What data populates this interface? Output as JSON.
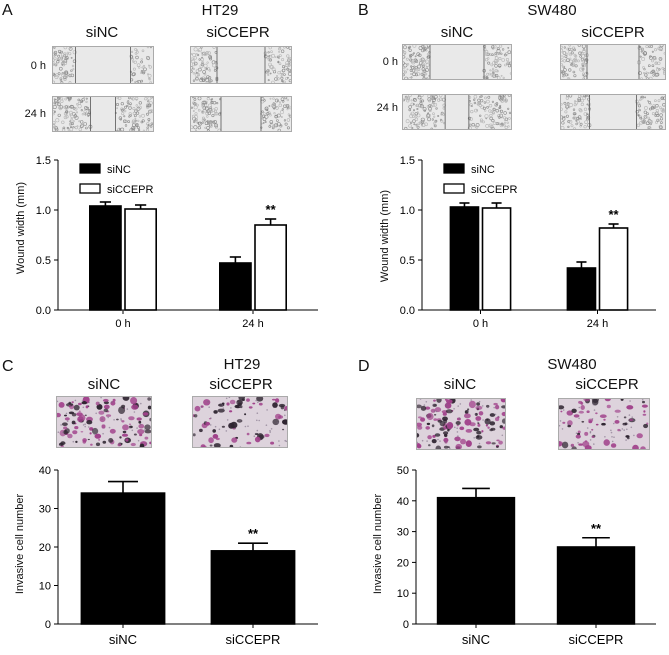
{
  "panels": [
    {
      "id": "A",
      "title": "HT29",
      "groups": [
        "siNC",
        "siCCEPR"
      ],
      "times": [
        "0 h",
        "24 h"
      ]
    },
    {
      "id": "B",
      "title": "SW480",
      "groups": [
        "siNC",
        "siCCEPR"
      ],
      "times": [
        "0 h",
        "24 h"
      ]
    },
    {
      "id": "C",
      "title": "HT29",
      "groups": [
        "siNC",
        "siCCEPR"
      ]
    },
    {
      "id": "D",
      "title": "SW480",
      "groups": [
        "siNC",
        "siCCEPR"
      ]
    }
  ],
  "colors": {
    "filled": "#000000",
    "open": "#ffffff",
    "stain": "#a0408a",
    "field": "#ddd3dc",
    "scratch_bg": "#e9e9e9"
  },
  "chart_data": [
    {
      "panel": "A",
      "type": "bar",
      "categories": [
        "0 h",
        "24 h"
      ],
      "series": [
        {
          "name": "siNC",
          "values": [
            1.04,
            0.47
          ],
          "errors": [
            0.04,
            0.06
          ],
          "fill": "filled"
        },
        {
          "name": "siCCEPR",
          "values": [
            1.01,
            0.85
          ],
          "errors": [
            0.04,
            0.06
          ],
          "fill": "open"
        }
      ],
      "ylabel": "Wound width (mm)",
      "xlabel": "",
      "ylim": [
        0,
        1.5
      ],
      "yticks": [
        "0.0",
        "0.5",
        "1.0",
        "1.5"
      ],
      "annotations": [
        {
          "category": "24 h",
          "series": "siCCEPR",
          "text": "**"
        }
      ],
      "legend": "top-left",
      "grid": false
    },
    {
      "panel": "B",
      "type": "bar",
      "categories": [
        "0 h",
        "24 h"
      ],
      "series": [
        {
          "name": "siNC",
          "values": [
            1.03,
            0.42
          ],
          "errors": [
            0.04,
            0.06
          ],
          "fill": "filled"
        },
        {
          "name": "siCCEPR",
          "values": [
            1.02,
            0.82
          ],
          "errors": [
            0.05,
            0.04
          ],
          "fill": "open"
        }
      ],
      "ylabel": "Wound width (mm)",
      "xlabel": "",
      "ylim": [
        0,
        1.5
      ],
      "yticks": [
        "0.0",
        "0.5",
        "1.0",
        "1.5"
      ],
      "annotations": [
        {
          "category": "24 h",
          "series": "siCCEPR",
          "text": "**"
        }
      ],
      "legend": "top-left",
      "grid": false
    },
    {
      "panel": "C",
      "type": "bar",
      "categories": [
        "siNC",
        "siCCEPR"
      ],
      "series": [
        {
          "name": "",
          "values": [
            34,
            19
          ],
          "errors": [
            3,
            2
          ],
          "fill": "filled"
        }
      ],
      "ylabel": "Invasive cell number",
      "xlabel": "",
      "ylim": [
        0,
        40
      ],
      "yticks": [
        "0",
        "10",
        "20",
        "30",
        "40"
      ],
      "annotations": [
        {
          "category": "siCCEPR",
          "text": "**"
        }
      ],
      "legend": "none",
      "grid": false
    },
    {
      "panel": "D",
      "type": "bar",
      "categories": [
        "siNC",
        "siCCEPR"
      ],
      "series": [
        {
          "name": "",
          "values": [
            41,
            25
          ],
          "errors": [
            3,
            3
          ],
          "fill": "filled"
        }
      ],
      "ylabel": "Invasive cell number",
      "xlabel": "",
      "ylim": [
        0,
        50
      ],
      "yticks": [
        "0",
        "10",
        "20",
        "30",
        "40",
        "50"
      ],
      "annotations": [
        {
          "category": "siCCEPR",
          "text": "**"
        }
      ],
      "legend": "none",
      "grid": false
    }
  ]
}
